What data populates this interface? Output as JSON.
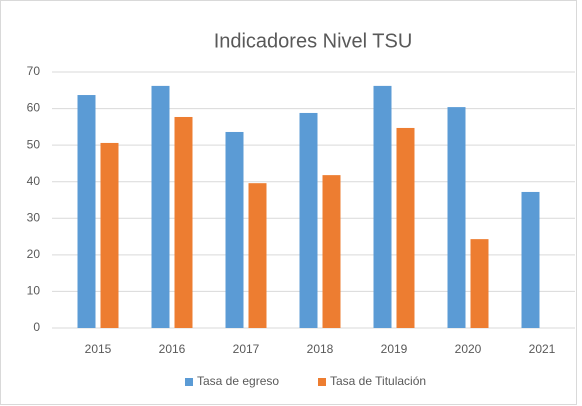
{
  "chart_data": {
    "type": "bar",
    "title": "Indicadores Nivel TSU",
    "categories": [
      "2015",
      "2016",
      "2017",
      "2018",
      "2019",
      "2020",
      "2021"
    ],
    "series": [
      {
        "name": "Tasa de egreso",
        "color": "#5b9bd5",
        "values": [
          63.7,
          66.2,
          53.6,
          58.8,
          66.2,
          60.4,
          37.2
        ]
      },
      {
        "name": "Tasa de Titulación",
        "color": "#ed7d31",
        "values": [
          50.6,
          57.7,
          39.6,
          41.8,
          54.7,
          24.3,
          null
        ]
      }
    ],
    "ylim": [
      0,
      70
    ],
    "yticks": [
      0,
      10,
      20,
      30,
      40,
      50,
      60,
      70
    ],
    "grid": true,
    "legend": "bottom"
  }
}
